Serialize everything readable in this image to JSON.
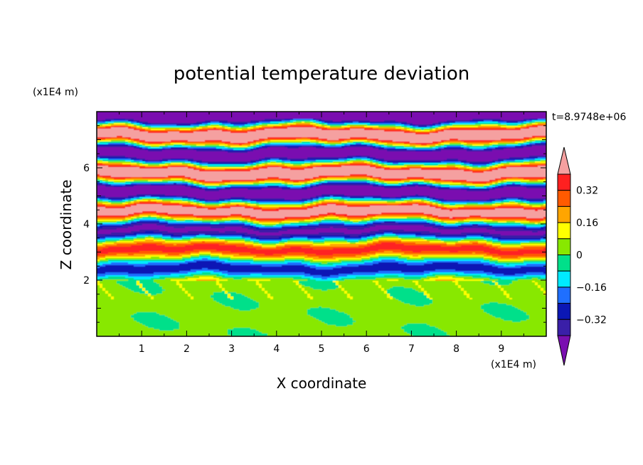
{
  "chart_data": {
    "type": "heatmap",
    "title": "potential temperature deviation",
    "xlabel": "X coordinate",
    "ylabel": "Z coordinate",
    "x_unit_label": "(x1E4 m)",
    "y_unit_label": "(x1E4 m)",
    "time_label": "t=8.9748e+06",
    "xlim": [
      0,
      10
    ],
    "ylim": [
      0,
      8
    ],
    "x_ticks": [
      1,
      2,
      3,
      4,
      5,
      6,
      7,
      8,
      9
    ],
    "x_tick_labels": [
      "1",
      "2",
      "3",
      "4",
      "5",
      "6",
      "7",
      "8",
      "9"
    ],
    "y_ticks": [
      2,
      4,
      6
    ],
    "y_tick_labels": [
      "2",
      "4",
      "6"
    ],
    "colorbar": {
      "levels": [
        -0.4,
        -0.32,
        -0.24,
        -0.16,
        -0.08,
        0,
        0.08,
        0.16,
        0.24,
        0.32,
        0.4
      ],
      "tick_values": [
        0.32,
        0.16,
        0,
        -0.16,
        -0.32
      ],
      "tick_labels": [
        "0.32",
        "0.16",
        "0",
        "−0.16",
        "−0.32"
      ],
      "colors": [
        "#7a0fb0",
        "#3a1fa8",
        "#0b17b5",
        "#1f6fff",
        "#00eaff",
        "#00e08a",
        "#88e800",
        "#ffff00",
        "#ffa500",
        "#ff5a00",
        "#ff2020",
        "#f5a0a0"
      ],
      "extend": "both"
    },
    "layers": [
      {
        "z_range": [
          0,
          2
        ],
        "description_value": "near zero with small positive patches",
        "dominant": [
          0.03,
          0.05
        ]
      },
      {
        "z_range": [
          2,
          5
        ],
        "description_value": "oscillating bands",
        "dominant": [
          -0.3,
          0.3
        ]
      },
      {
        "z_range": [
          5,
          8
        ],
        "description_value": "strong alternating bands",
        "dominant": [
          -0.45,
          0.45
        ]
      }
    ]
  }
}
